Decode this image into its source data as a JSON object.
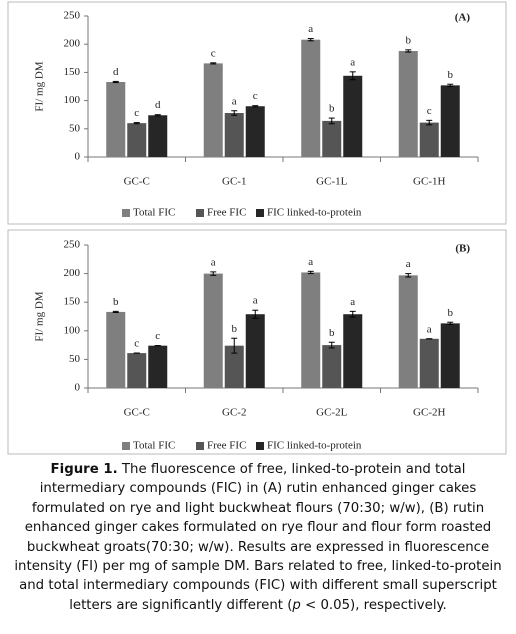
{
  "chart_data": [
    {
      "type": "bar",
      "panel_label": "(A)",
      "y_label": "FI/ mg DM",
      "categories": [
        "GC-C",
        "GC-1",
        "GC-1L",
        "GC-1H"
      ],
      "series": [
        {
          "name": "Total FIC",
          "color": "#7f7f7f",
          "values": [
            133,
            166,
            208,
            188
          ],
          "errors": [
            1,
            1,
            2,
            2
          ],
          "letters": [
            "d",
            "c",
            "a",
            "b"
          ]
        },
        {
          "name": "Free FIC",
          "color": "#555555",
          "values": [
            60,
            78,
            64,
            61
          ],
          "errors": [
            1,
            4,
            5,
            4
          ],
          "letters": [
            "c",
            "a",
            "b",
            "c"
          ]
        },
        {
          "name": "FIC linked-to-protein",
          "color": "#262626",
          "values": [
            74,
            90,
            144,
            127
          ],
          "errors": [
            1,
            1,
            7,
            2
          ],
          "letters": [
            "d",
            "c",
            "a",
            "b"
          ]
        }
      ],
      "ylim": [
        0,
        250
      ],
      "yticks": [
        0,
        50,
        100,
        150,
        200,
        250
      ],
      "grid": false,
      "legend": "bottom"
    },
    {
      "type": "bar",
      "panel_label": "(B)",
      "y_label": "FI/ mg DM",
      "categories": [
        "GC-C",
        "GC-2",
        "GC-2L",
        "GC-2H"
      ],
      "series": [
        {
          "name": "Total FIC",
          "color": "#7f7f7f",
          "values": [
            133,
            200,
            202,
            197
          ],
          "errors": [
            1,
            3,
            2,
            3
          ],
          "letters": [
            "b",
            "a",
            "a",
            "a"
          ]
        },
        {
          "name": "Free FIC",
          "color": "#555555",
          "values": [
            61,
            74,
            75,
            86
          ],
          "errors": [
            0,
            13,
            5,
            0
          ],
          "letters": [
            "c",
            "b",
            "b",
            "a"
          ]
        },
        {
          "name": "FIC linked-to-protein",
          "color": "#262626",
          "values": [
            74,
            129,
            129,
            113
          ],
          "errors": [
            0,
            7,
            5,
            2
          ],
          "letters": [
            "c",
            "a",
            "a",
            "b"
          ]
        }
      ],
      "ylim": [
        0,
        250
      ],
      "yticks": [
        0,
        50,
        100,
        150,
        200,
        250
      ],
      "grid": false,
      "legend": "bottom"
    }
  ],
  "caption": {
    "label": "Figure 1.",
    "text": "The fluorescence of free, linked-to-protein and total intermediary compounds (FIC) in (A) rutin enhanced ginger cakes formulated on rye and light buckwheat flours (70:30; w/w), (B) rutin enhanced ginger cakes formulated on rye flour and flour form roasted buckwheat groats(70:30; w/w). Results are expressed in fluorescence intensity (FI) per mg of sample DM. Bars related to free, linked-to-protein and total intermediary compounds (FIC) with different small superscript letters are significantly different (",
    "italic": "p",
    "end": " < 0.05), respectively."
  }
}
